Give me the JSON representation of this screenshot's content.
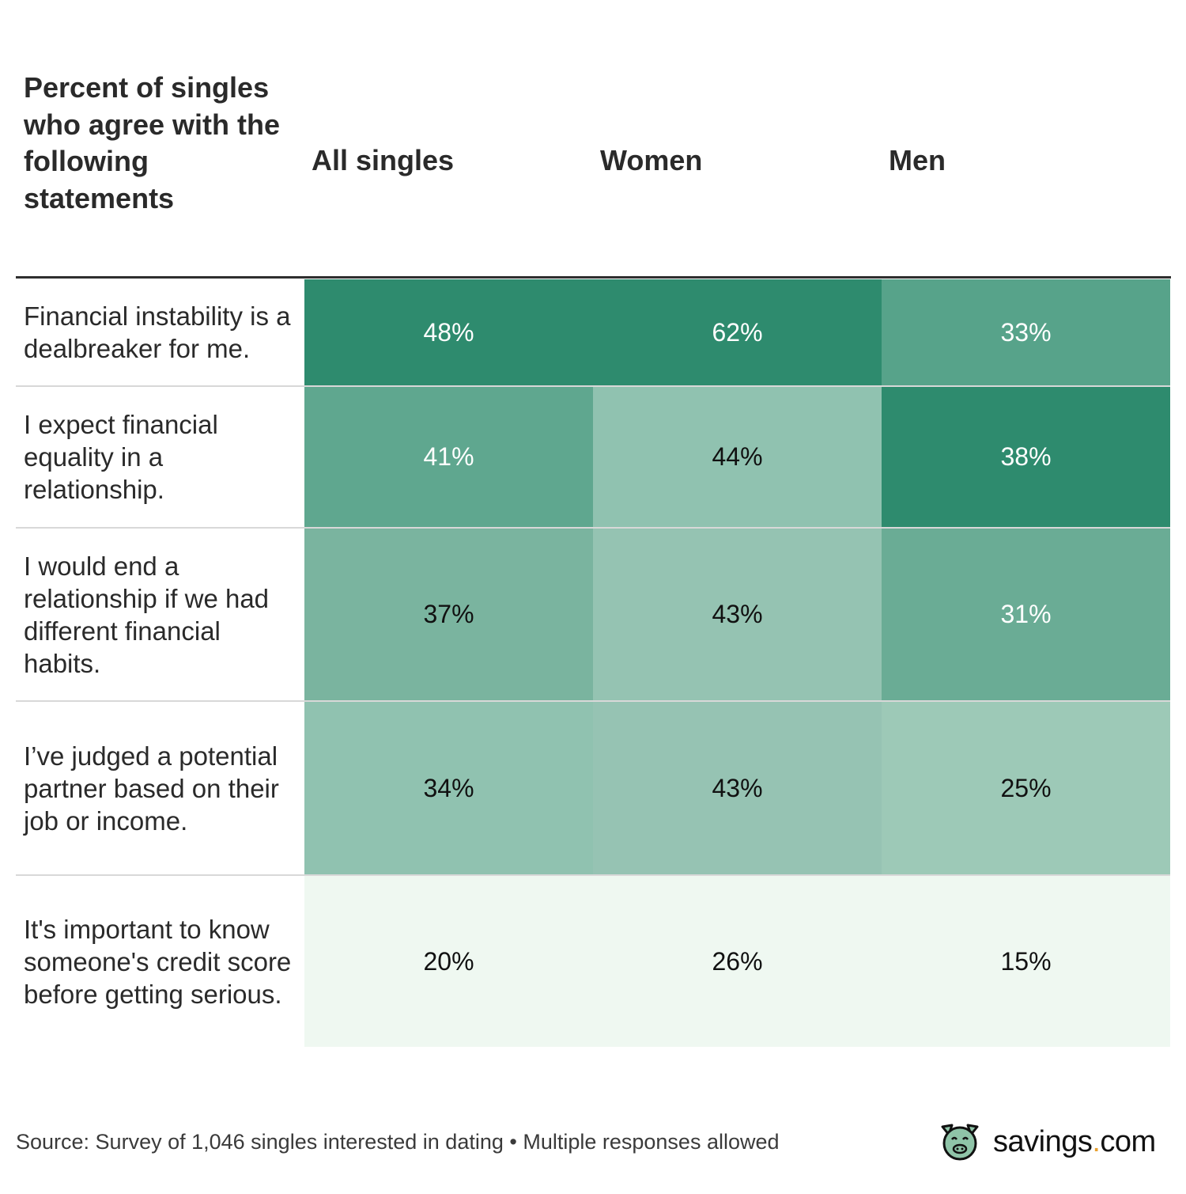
{
  "chart_data": {
    "type": "heatmap",
    "title": "Percent of singles who agree with the following statements",
    "columns": [
      "All singles",
      "Women",
      "Men"
    ],
    "rows": [
      {
        "statement": "Financial instability is a dealbreaker for me.",
        "values": [
          "48%",
          "62%",
          "33%"
        ],
        "colors": [
          "#2e8b6e",
          "#2e8b6e",
          "#57a38a"
        ],
        "text_colors": [
          "#ffffff",
          "#ffffff",
          "#ffffff"
        ]
      },
      {
        "statement": "I expect financial equality in a relationship.",
        "values": [
          "41%",
          "44%",
          "38%"
        ],
        "colors": [
          "#5fa78f",
          "#90c2b0",
          "#2e8b6e"
        ],
        "text_colors": [
          "#ffffff",
          "#111111",
          "#ffffff"
        ]
      },
      {
        "statement": "I would end a relationship if we had different financial habits.",
        "values": [
          "37%",
          "43%",
          "31%"
        ],
        "colors": [
          "#7ab49f",
          "#95c3b2",
          "#6aac95"
        ],
        "text_colors": [
          "#111111",
          "#111111",
          "#ffffff"
        ]
      },
      {
        "statement": "I’ve judged a potential partner based on their job or income.",
        "values": [
          "34%",
          "43%",
          "25%"
        ],
        "colors": [
          "#90c2b0",
          "#96c3b3",
          "#9dc9b7"
        ],
        "text_colors": [
          "#111111",
          "#111111",
          "#111111"
        ]
      },
      {
        "statement": "It's important to know someone's credit score before getting serious.",
        "values": [
          "20%",
          "26%",
          "15%"
        ],
        "colors": [
          "#eff8f1",
          "#eff8f1",
          "#eff8f1"
        ],
        "text_colors": [
          "#111111",
          "#111111",
          "#111111"
        ]
      }
    ]
  },
  "footer": {
    "source": "Source: Survey of 1,046 singles interested in dating • Multiple responses allowed",
    "logo": {
      "name": "savings",
      "dot": ".",
      "tld": "com",
      "icon": "pig-icon",
      "icon_color": "#8fc4a8",
      "accent": "#e8a030"
    }
  }
}
